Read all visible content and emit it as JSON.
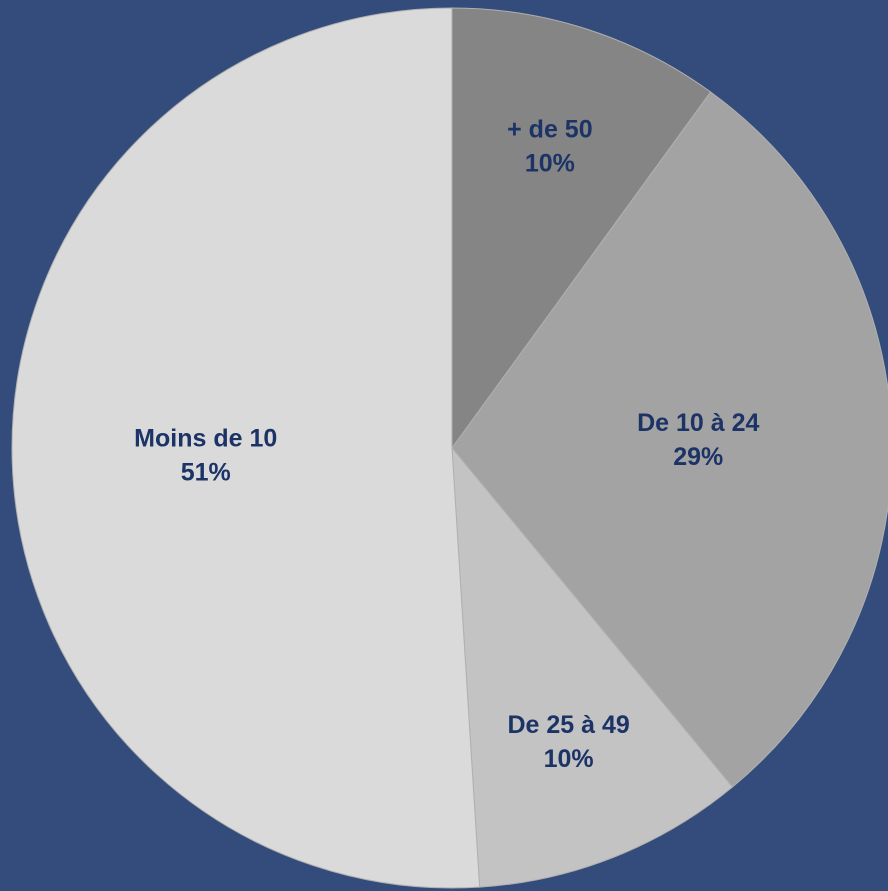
{
  "chart_data": {
    "type": "pie",
    "categories": [
      "+ de 50",
      "De 10 à 24",
      "De 25 à 49",
      "Moins de 10"
    ],
    "values": [
      10,
      29,
      10,
      51
    ],
    "value_labels": [
      "10%",
      "29%",
      "10%",
      "51%"
    ],
    "colors": [
      "#858585",
      "#a3a3a3",
      "#c3c3c3",
      "#dadada"
    ]
  }
}
